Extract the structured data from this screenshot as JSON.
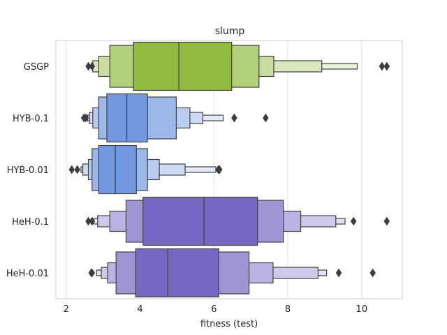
{
  "chart_data": {
    "type": "boxenplot",
    "title": "slump",
    "xlabel": "fitness (test)",
    "ylabel": "",
    "xlim": [
      1.72,
      11.1
    ],
    "xticks": [
      2,
      4,
      6,
      8,
      10
    ],
    "grid": true,
    "orientation": "horizontal",
    "categories": [
      "GSGP",
      "HYB-0.1",
      "HYB-0.01",
      "HeH-0.1",
      "HeH-0.01"
    ],
    "series": [
      {
        "category": "GSGP",
        "color": "#91ba3f",
        "median": 5.05,
        "boxes": [
          [
            3.82,
            6.48
          ],
          [
            3.18,
            7.22
          ],
          [
            2.88,
            7.62
          ],
          [
            2.72,
            8.92
          ],
          [
            2.7,
            9.88
          ]
        ],
        "outliers": [
          2.6,
          2.7,
          10.55,
          10.68
        ]
      },
      {
        "category": "HYB-0.1",
        "color": "#7298e0",
        "median": 3.64,
        "boxes": [
          [
            3.1,
            4.2
          ],
          [
            2.88,
            4.98
          ],
          [
            2.72,
            5.35
          ],
          [
            2.63,
            5.7
          ],
          [
            2.58,
            6.25
          ]
        ],
        "outliers": [
          2.48,
          2.53,
          6.55,
          7.4
        ]
      },
      {
        "category": "HYB-0.01",
        "color": "#7298e0",
        "median": 3.33,
        "boxes": [
          [
            2.88,
            3.9
          ],
          [
            2.7,
            4.2
          ],
          [
            2.6,
            4.52
          ],
          [
            2.45,
            5.22
          ],
          [
            2.4,
            6.05
          ]
        ],
        "outliers": [
          2.15,
          2.3,
          6.12,
          6.15
        ]
      },
      {
        "category": "HeH-0.1",
        "color": "#7667c2",
        "median": 5.73,
        "boxes": [
          [
            4.08,
            7.18
          ],
          [
            3.62,
            7.88
          ],
          [
            3.18,
            8.35
          ],
          [
            2.85,
            9.3
          ],
          [
            2.75,
            9.55
          ]
        ],
        "outliers": [
          2.6,
          2.7,
          9.78,
          10.68
        ]
      },
      {
        "category": "HeH-0.01",
        "color": "#7667c2",
        "median": 4.75,
        "boxes": [
          [
            3.88,
            6.13
          ],
          [
            3.35,
            6.95
          ],
          [
            3.12,
            7.6
          ],
          [
            2.95,
            8.82
          ],
          [
            2.82,
            9.05
          ]
        ],
        "outliers": [
          2.68,
          2.7,
          9.38,
          10.3
        ]
      }
    ]
  }
}
